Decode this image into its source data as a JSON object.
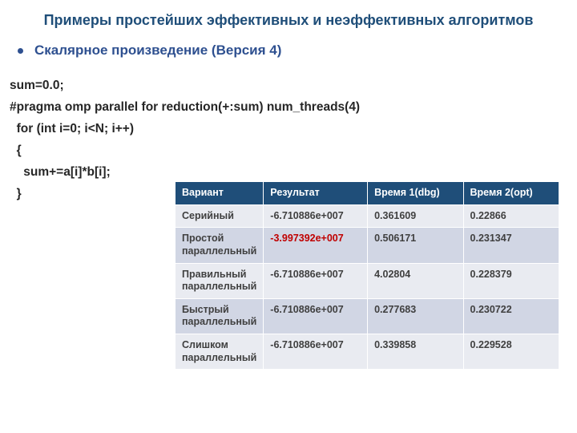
{
  "colors": {
    "title": "#1f4e79",
    "bullet_text": "#2e5090",
    "bullet_dot": "#2e5090",
    "code_text": "#262626",
    "th_bg": "#1f4e79",
    "th_text": "#ffffff",
    "row_odd_bg": "#e9ebf1",
    "row_even_bg": "#d1d6e4",
    "td_text": "#404040",
    "highlight_red": "#c00000",
    "border": "#ffffff"
  },
  "title": "Примеры простейших эффективных и неэффективных алгоритмов",
  "bullet": "Скалярное произведение (Версия 4)",
  "code": [
    "sum=0.0;",
    "#pragma omp parallel for reduction(+:sum) num_threads(4)",
    "  for (int i=0; i<N; i++)",
    "  {",
    "    sum+=a[i]*b[i];",
    "  }"
  ],
  "table": {
    "col_widths": [
      "110px",
      "130px",
      "120px",
      "120px"
    ],
    "headers": [
      "Вариант",
      "Результат",
      "Время 1(dbg)",
      "Время 2(opt)"
    ],
    "rows": [
      {
        "cells": [
          "Серийный",
          "-6.710886e+007",
          "0.361609",
          "0.22866"
        ],
        "highlight_col": -1
      },
      {
        "cells": [
          "Простой параллельный",
          "-3.997392e+007",
          "0.506171",
          "0.231347"
        ],
        "highlight_col": 1
      },
      {
        "cells": [
          "Правильный параллельный",
          "-6.710886e+007",
          "4.02804",
          "0.228379"
        ],
        "highlight_col": -1
      },
      {
        "cells": [
          "Быстрый параллельный",
          "-6.710886e+007",
          "0.277683",
          "0.230722"
        ],
        "highlight_col": -1
      },
      {
        "cells": [
          "Слишком параллельный",
          "-6.710886e+007",
          "0.339858",
          " 0.229528"
        ],
        "highlight_col": -1
      }
    ]
  }
}
